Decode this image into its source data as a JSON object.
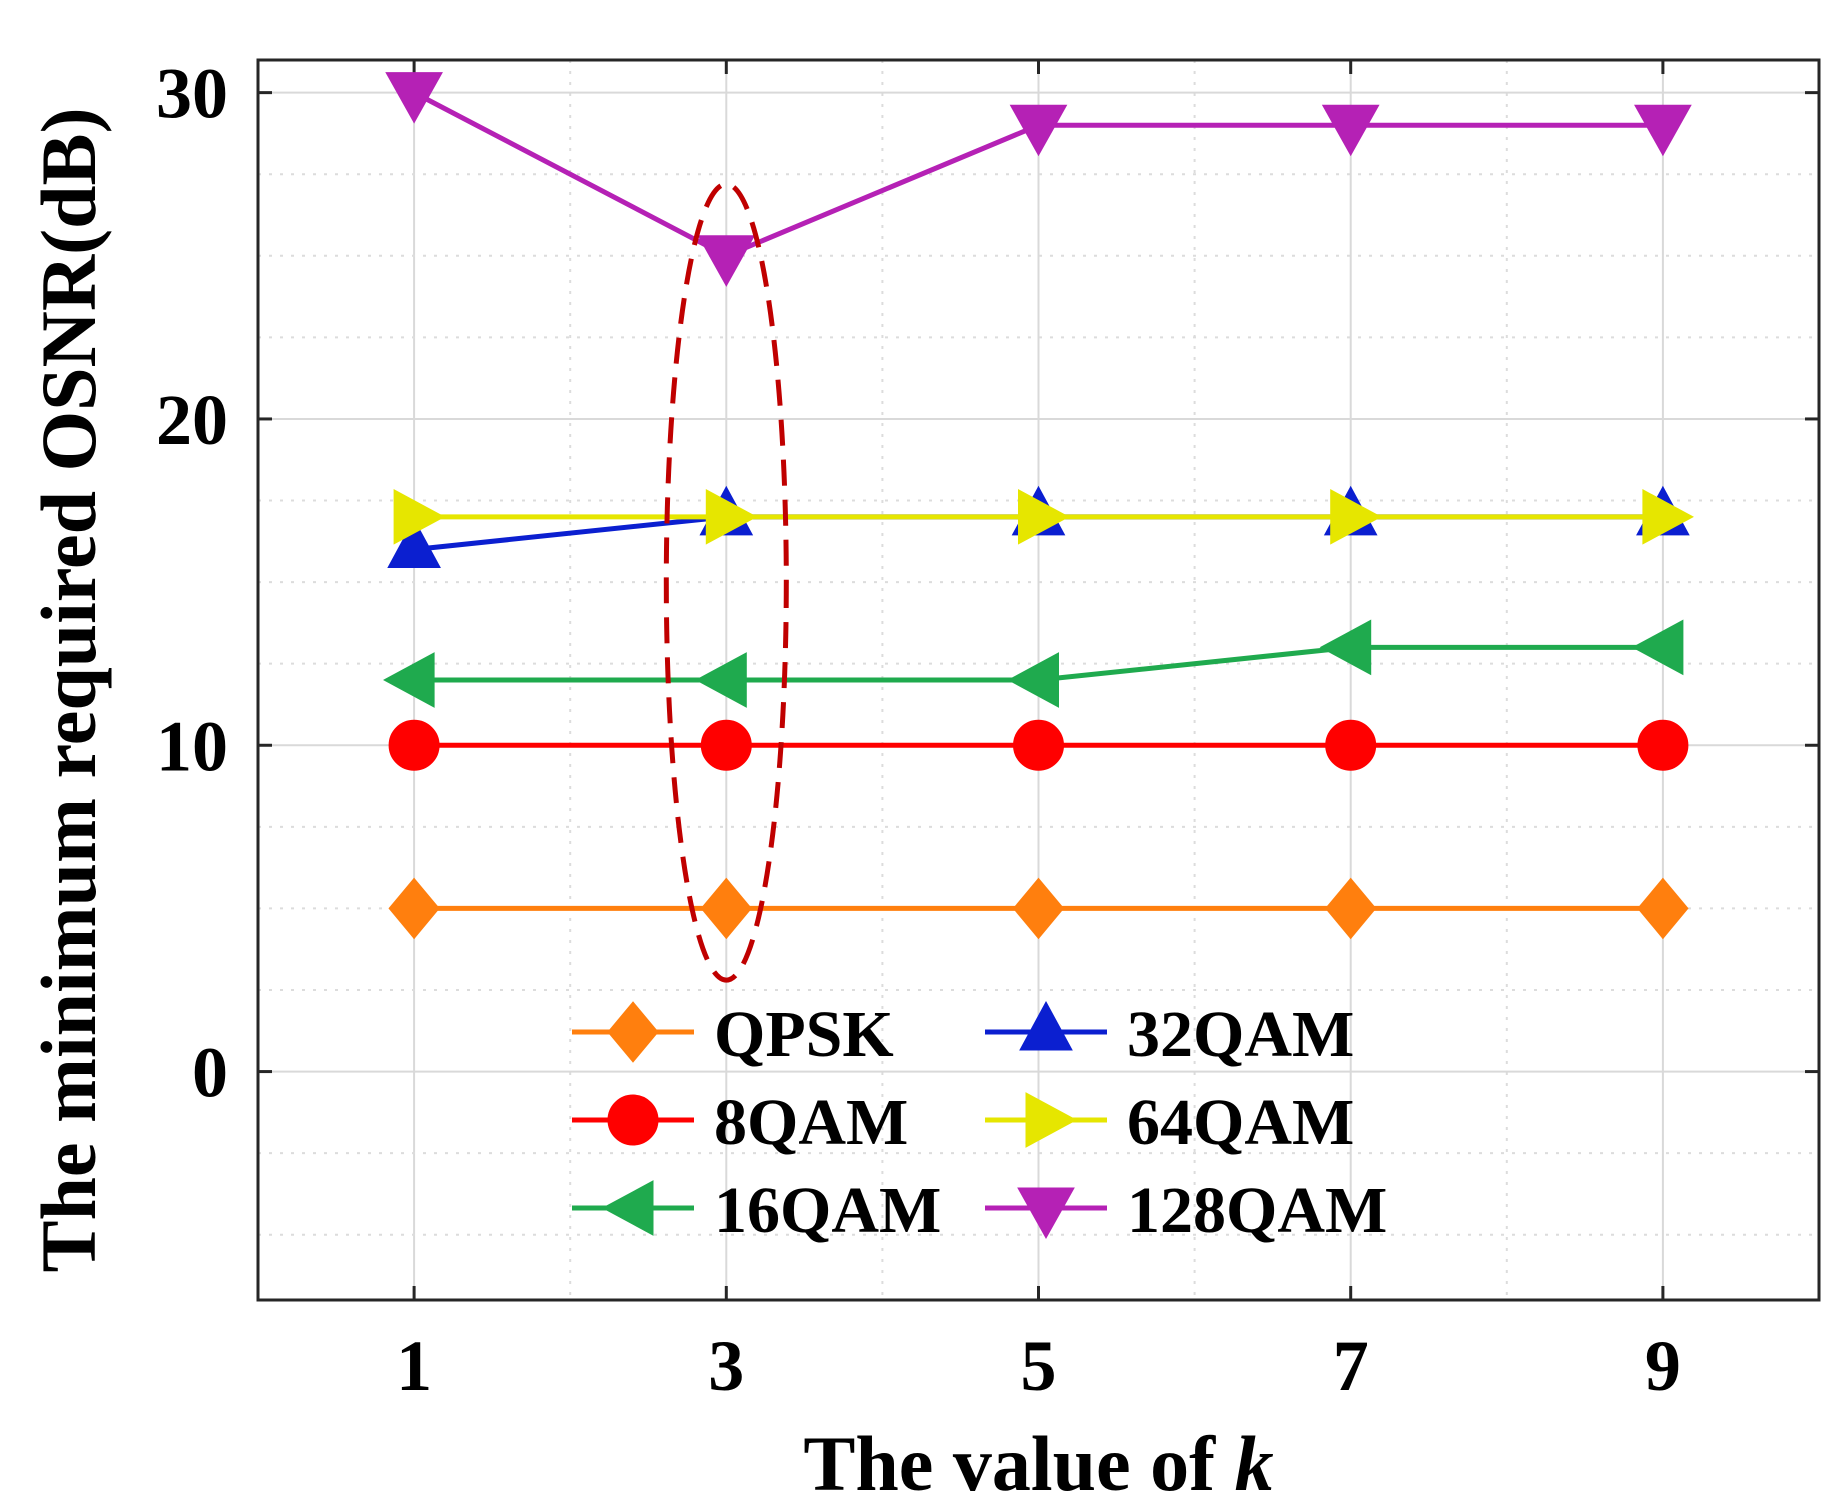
{
  "chart_data": {
    "type": "line",
    "title": "",
    "xlabel_prefix": "The value of ",
    "xlabel_var": "k",
    "ylabel": "The minimum required OSNR(dB)",
    "x": [
      1,
      3,
      5,
      7,
      9
    ],
    "xticks": [
      "1",
      "3",
      "5",
      "7",
      "9"
    ],
    "yticks": [
      "0",
      "10",
      "20",
      "30"
    ],
    "xlim": [
      0,
      10
    ],
    "ylim": [
      -7,
      31
    ],
    "grid": true,
    "legend_position": "bottom-center",
    "series": [
      {
        "name": "QPSK",
        "values": [
          5,
          5,
          5,
          5,
          5
        ],
        "color": "#FF7F0E",
        "marker": "diamond"
      },
      {
        "name": "8QAM",
        "values": [
          10,
          10,
          10,
          10,
          10
        ],
        "color": "#FF0000",
        "marker": "circle"
      },
      {
        "name": "16QAM",
        "values": [
          12,
          12,
          12,
          13,
          13
        ],
        "color": "#1FAA4E",
        "marker": "triangle-left"
      },
      {
        "name": "32QAM",
        "values": [
          16,
          17,
          17,
          17,
          17
        ],
        "color": "#0B1FD0",
        "marker": "triangle-up"
      },
      {
        "name": "64QAM",
        "values": [
          17,
          17,
          17,
          17,
          17
        ],
        "color": "#E6E600",
        "marker": "triangle-right"
      },
      {
        "name": "128QAM",
        "values": [
          30,
          25,
          29,
          29,
          29
        ],
        "color": "#B521B5",
        "marker": "triangle-down"
      }
    ],
    "annotation": {
      "type": "dashed-ellipse",
      "x": 3,
      "y_center": 15,
      "color": "#C00000"
    }
  }
}
